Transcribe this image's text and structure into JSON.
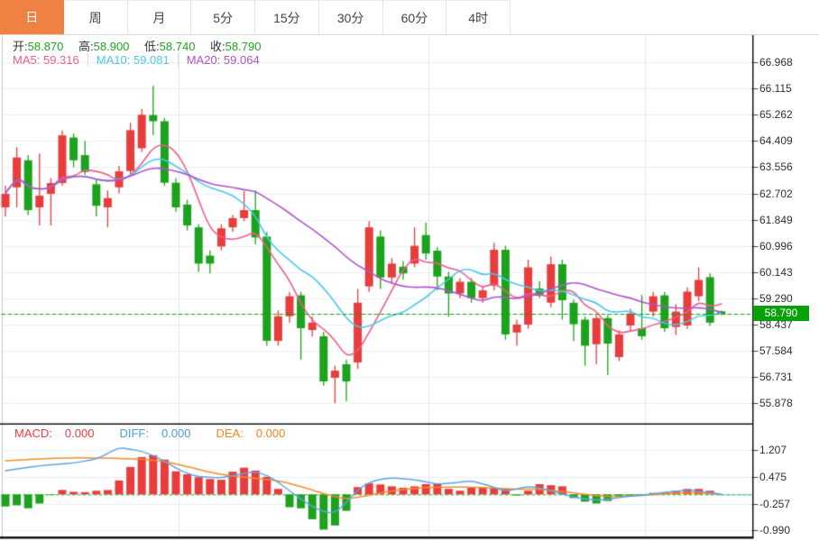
{
  "tabs": {
    "items": [
      {
        "label": "日",
        "active": true
      },
      {
        "label": "周",
        "active": false
      },
      {
        "label": "月",
        "active": false
      },
      {
        "label": "5分",
        "active": false
      },
      {
        "label": "15分",
        "active": false
      },
      {
        "label": "30分",
        "active": false
      },
      {
        "label": "60分",
        "active": false
      },
      {
        "label": "4时",
        "active": false
      }
    ]
  },
  "ohlc": {
    "open_label": "开:",
    "open": "58.870",
    "high_label": "高:",
    "high": "58.900",
    "low_label": "低:",
    "low": "58.740",
    "close_label": "收:",
    "close": "58.790"
  },
  "ma": {
    "ma5_label": "MA5:",
    "ma5": "59.316",
    "ma10_label": "MA10:",
    "ma10": "59.081",
    "ma20_label": "MA20:",
    "ma20": "59.064"
  },
  "macd_legend": {
    "macd_label": "MACD:",
    "macd": "0.000",
    "diff_label": "DIFF:",
    "diff": "0.000",
    "dea_label": "DEA:",
    "dea": "0.000"
  },
  "price_badge": "58.790",
  "colors": {
    "accent_orange": "#ef8243",
    "up": "#e93c3c",
    "down": "#1ca21c",
    "ma5": "#f25c8a",
    "ma10": "#49c9ea",
    "ma20": "#b052cc",
    "diff": "#5aa4e6",
    "dea": "#f58c2a",
    "badge_bg": "#09a109",
    "value_green": "#1fa51f",
    "macd_label_color": "#f23c3c",
    "diff_label_color": "#4b9ce8",
    "dea_label_color": "#f5861f",
    "grid": "#eaeff5",
    "vgrid": "#dce6f0",
    "current_line": "#0ca30c"
  },
  "chart_data": {
    "type": "candlestick+macd",
    "title": "",
    "main": {
      "y_ticks": [
        "66.968",
        "66.115",
        "65.262",
        "64.409",
        "63.556",
        "62.702",
        "61.849",
        "60.996",
        "60.143",
        "59.290",
        "58.437",
        "57.584",
        "56.731",
        "55.878"
      ],
      "current_price": 58.79,
      "ma_periods": [
        5,
        10,
        20
      ],
      "candles": [
        [
          62.25,
          62.95,
          61.95,
          62.69
        ],
        [
          62.9,
          64.2,
          62.25,
          63.87
        ],
        [
          63.78,
          63.95,
          62.0,
          62.16
        ],
        [
          62.25,
          64.0,
          61.66,
          62.63
        ],
        [
          62.69,
          63.2,
          61.66,
          63.04
        ],
        [
          63.04,
          64.75,
          62.95,
          64.59
        ],
        [
          64.52,
          64.65,
          63.55,
          63.78
        ],
        [
          63.95,
          64.4,
          63.3,
          63.4
        ],
        [
          63.0,
          63.15,
          61.95,
          62.3
        ],
        [
          62.25,
          62.8,
          61.6,
          62.55
        ],
        [
          62.9,
          63.6,
          62.7,
          63.42
        ],
        [
          63.43,
          65.0,
          63.3,
          64.76
        ],
        [
          64.17,
          65.45,
          64.05,
          65.26
        ],
        [
          65.25,
          66.2,
          64.6,
          65.05
        ],
        [
          65.05,
          65.15,
          62.95,
          63.05
        ],
        [
          63.05,
          63.2,
          62.1,
          62.25
        ],
        [
          62.34,
          62.5,
          61.5,
          61.66
        ],
        [
          61.6,
          61.7,
          60.15,
          60.42
        ],
        [
          60.68,
          60.85,
          60.1,
          60.42
        ],
        [
          60.98,
          61.7,
          60.85,
          61.57
        ],
        [
          61.6,
          62.0,
          61.45,
          61.9
        ],
        [
          61.9,
          62.78,
          61.8,
          62.16
        ],
        [
          62.16,
          62.8,
          61.05,
          61.27
        ],
        [
          61.3,
          61.45,
          57.75,
          57.91
        ],
        [
          57.91,
          58.9,
          57.75,
          58.71
        ],
        [
          58.71,
          59.5,
          58.5,
          59.36
        ],
        [
          59.39,
          59.5,
          57.3,
          58.32
        ],
        [
          58.26,
          58.7,
          58.05,
          58.5
        ],
        [
          58.06,
          58.2,
          56.45,
          56.59
        ],
        [
          56.71,
          57.1,
          55.88,
          56.94
        ],
        [
          57.15,
          57.3,
          55.95,
          56.59
        ],
        [
          57.21,
          59.6,
          57.0,
          59.15
        ],
        [
          59.68,
          61.8,
          59.5,
          61.6
        ],
        [
          61.3,
          61.5,
          59.6,
          59.97
        ],
        [
          59.97,
          60.6,
          59.8,
          60.42
        ],
        [
          60.32,
          60.5,
          59.9,
          60.1
        ],
        [
          60.42,
          61.6,
          60.3,
          61.0
        ],
        [
          61.35,
          61.75,
          60.55,
          60.75
        ],
        [
          60.84,
          60.95,
          59.55,
          60.0
        ],
        [
          60.0,
          60.15,
          58.7,
          59.45
        ],
        [
          59.45,
          59.95,
          59.3,
          59.83
        ],
        [
          59.83,
          59.95,
          59.15,
          59.3
        ],
        [
          59.3,
          59.7,
          59.15,
          59.55
        ],
        [
          59.7,
          61.1,
          59.55,
          60.87
        ],
        [
          60.87,
          61.0,
          57.95,
          58.12
        ],
        [
          58.18,
          58.6,
          57.75,
          58.44
        ],
        [
          58.44,
          60.55,
          58.3,
          60.3
        ],
        [
          59.61,
          59.85,
          59.3,
          59.37
        ],
        [
          59.15,
          60.65,
          59.0,
          60.4
        ],
        [
          60.4,
          60.55,
          58.6,
          59.23
        ],
        [
          59.15,
          59.25,
          57.9,
          58.45
        ],
        [
          58.6,
          58.7,
          57.1,
          57.75
        ],
        [
          57.8,
          58.75,
          57.15,
          58.65
        ],
        [
          58.65,
          58.75,
          56.8,
          57.82
        ],
        [
          57.38,
          58.25,
          57.25,
          58.12
        ],
        [
          58.41,
          58.95,
          58.2,
          58.8
        ],
        [
          58.32,
          59.4,
          57.95,
          58.06
        ],
        [
          58.86,
          59.5,
          58.7,
          59.36
        ],
        [
          59.39,
          59.5,
          58.2,
          58.32
        ],
        [
          58.36,
          59.1,
          58.1,
          58.86
        ],
        [
          58.41,
          59.65,
          58.3,
          59.51
        ],
        [
          59.36,
          60.3,
          59.2,
          59.89
        ],
        [
          59.98,
          60.1,
          58.4,
          58.5
        ],
        [
          58.87,
          58.9,
          58.74,
          58.79
        ]
      ]
    },
    "macd": {
      "y_ticks": [
        "1.207",
        "0.475",
        "-0.257",
        "-0.990"
      ],
      "hist": [
        -0.33,
        -0.3,
        -0.38,
        -0.25,
        -0.02,
        0.12,
        0.07,
        0.06,
        0.1,
        0.12,
        0.38,
        0.75,
        1.02,
        1.07,
        0.95,
        0.63,
        0.55,
        0.47,
        0.42,
        0.4,
        0.62,
        0.73,
        0.65,
        0.48,
        0.15,
        -0.35,
        -0.38,
        -0.68,
        -0.96,
        -0.85,
        -0.45,
        0.2,
        0.3,
        0.27,
        0.22,
        0.18,
        0.22,
        0.28,
        0.28,
        0.15,
        0.1,
        0.2,
        0.18,
        0.18,
        0.15,
        -0.03,
        0.1,
        0.28,
        0.25,
        0.22,
        -0.1,
        -0.2,
        -0.25,
        -0.18,
        -0.07,
        -0.05,
        -0.04,
        0.04,
        0.06,
        0.1,
        0.15,
        0.15,
        0.1,
        0.0
      ],
      "diff_points": [
        [
          0,
          0.65
        ],
        [
          3,
          0.78
        ],
        [
          6,
          0.86
        ],
        [
          8,
          0.96
        ],
        [
          10,
          1.28
        ],
        [
          12,
          1.18
        ],
        [
          13.5,
          1.0
        ],
        [
          15.5,
          0.62
        ],
        [
          17,
          0.48
        ],
        [
          19,
          0.45
        ],
        [
          20.5,
          0.55
        ],
        [
          22,
          0.62
        ],
        [
          23,
          0.52
        ],
        [
          24.3,
          0.28
        ],
        [
          25.3,
          0.02
        ],
        [
          26.8,
          -0.3
        ],
        [
          28,
          -0.48
        ],
        [
          29.2,
          -0.52
        ],
        [
          30.2,
          -0.15
        ],
        [
          31.2,
          0.2
        ],
        [
          32.5,
          0.4
        ],
        [
          34,
          0.45
        ],
        [
          36,
          0.4
        ],
        [
          38,
          0.28
        ],
        [
          40,
          0.33
        ],
        [
          41,
          0.37
        ],
        [
          42.5,
          0.25
        ],
        [
          44,
          0.08
        ],
        [
          46,
          0.22
        ],
        [
          47.5,
          0.15
        ],
        [
          49,
          0.0
        ],
        [
          51,
          -0.13
        ],
        [
          52.5,
          -0.17
        ],
        [
          54,
          -0.08
        ],
        [
          56,
          -0.02
        ],
        [
          58,
          0.05
        ],
        [
          60,
          0.12
        ],
        [
          61.5,
          0.07
        ],
        [
          63,
          0.0
        ]
      ],
      "dea_points": [
        [
          0,
          0.92
        ],
        [
          3,
          0.97
        ],
        [
          6,
          1.0
        ],
        [
          9,
          0.99
        ],
        [
          12,
          0.96
        ],
        [
          14,
          0.9
        ],
        [
          16,
          0.76
        ],
        [
          18,
          0.6
        ],
        [
          20,
          0.5
        ],
        [
          22,
          0.44
        ],
        [
          24,
          0.37
        ],
        [
          25.5,
          0.26
        ],
        [
          27,
          0.12
        ],
        [
          28.5,
          -0.03
        ],
        [
          30,
          -0.12
        ],
        [
          31.5,
          -0.06
        ],
        [
          33,
          0.04
        ],
        [
          34.5,
          0.12
        ],
        [
          36.5,
          0.18
        ],
        [
          38.5,
          0.2
        ],
        [
          40.5,
          0.2
        ],
        [
          42.5,
          0.18
        ],
        [
          44.5,
          0.14
        ],
        [
          46.5,
          0.15
        ],
        [
          48.5,
          0.1
        ],
        [
          50.5,
          0.02
        ],
        [
          52,
          -0.04
        ],
        [
          53.5,
          -0.06
        ],
        [
          55.5,
          -0.04
        ],
        [
          57.5,
          0.0
        ],
        [
          59.5,
          0.05
        ],
        [
          61,
          0.04
        ],
        [
          63,
          0.0
        ]
      ]
    }
  }
}
